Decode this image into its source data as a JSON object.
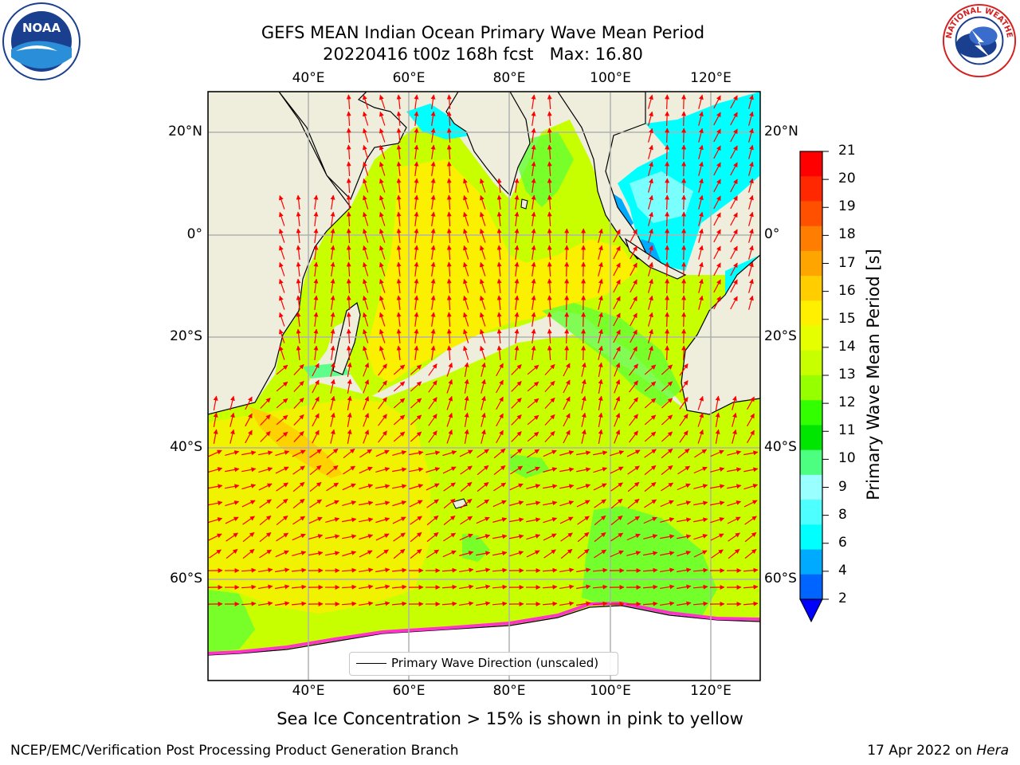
{
  "title": {
    "line1": "GEFS MEAN Indian Ocean Primary Wave Mean Period",
    "line2": "20220416 t00z 168h fcst   Max: 16.80"
  },
  "logos": {
    "left": "noaa-logo",
    "right": "nws-logo",
    "noaa_text": "NOAA",
    "nws_ring_text": "NATIONAL WEATHER SERVICE"
  },
  "map": {
    "lon_labels": [
      "40°E",
      "60°E",
      "80°E",
      "100°E",
      "120°E"
    ],
    "lat_labels": [
      "20°N",
      "0°",
      "20°S",
      "40°S",
      "60°S"
    ],
    "legend": "Primary Wave Direction (unscaled)",
    "colors": {
      "land": "#efeedd",
      "ocean_main": "#c8ff00",
      "ocean_high": "#ffee00",
      "arrow": "#ff0000"
    }
  },
  "colorbar": {
    "label": "Primary Wave Mean Period [s]",
    "ticks": [
      "21",
      "20",
      "19",
      "18",
      "17",
      "16",
      "15",
      "14",
      "13",
      "12",
      "11",
      "10",
      "9",
      "8",
      "6",
      "4",
      "2"
    ],
    "colors": [
      "#ff0000",
      "#ff2800",
      "#ff5000",
      "#ff7d00",
      "#ffa500",
      "#ffcd00",
      "#fff000",
      "#e6ff00",
      "#c8ff00",
      "#96ff00",
      "#32ff00",
      "#00e600",
      "#4dff80",
      "#99ffff",
      "#4dffff",
      "#00ffff",
      "#00aaff",
      "#0064ff"
    ],
    "extend_color": "#0000ff"
  },
  "footnote": "Sea Ice Concentration > 15% is shown in pink to yellow",
  "footer": {
    "left": "NCEP/EMC/Verification Post Processing Product Generation Branch",
    "right_prefix": "17 Apr 2022 on ",
    "right_italic": "Hera"
  }
}
